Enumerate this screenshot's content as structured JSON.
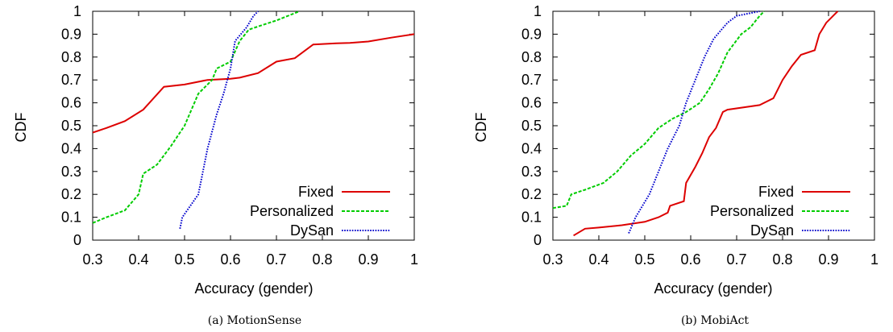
{
  "chart_data": [
    {
      "type": "line",
      "caption": "(a) MotionSense",
      "xlabel": "Accuracy (gender)",
      "ylabel": "CDF",
      "xlim": [
        0.3,
        1
      ],
      "ylim": [
        0,
        1
      ],
      "xticks": [
        "0.3",
        "0.4",
        "0.5",
        "0.6",
        "0.7",
        "0.8",
        "0.9",
        "1"
      ],
      "yticks": [
        "0",
        "0.1",
        "0.2",
        "0.3",
        "0.4",
        "0.5",
        "0.6",
        "0.7",
        "0.8",
        "0.9",
        "1"
      ],
      "legend_position": "bottom-right",
      "series": [
        {
          "name": "Fixed",
          "color": "#dd0000",
          "dash": "solid",
          "points": [
            [
              0.3,
              0.47
            ],
            [
              0.33,
              0.49
            ],
            [
              0.37,
              0.52
            ],
            [
              0.41,
              0.57
            ],
            [
              0.455,
              0.67
            ],
            [
              0.5,
              0.68
            ],
            [
              0.55,
              0.7
            ],
            [
              0.6,
              0.705
            ],
            [
              0.62,
              0.71
            ],
            [
              0.66,
              0.73
            ],
            [
              0.7,
              0.78
            ],
            [
              0.74,
              0.795
            ],
            [
              0.78,
              0.855
            ],
            [
              0.83,
              0.86
            ],
            [
              0.86,
              0.862
            ],
            [
              0.9,
              0.868
            ],
            [
              0.95,
              0.885
            ],
            [
              1.0,
              0.9
            ]
          ]
        },
        {
          "name": "Personalized",
          "color": "#00cc00",
          "dash": "dashed",
          "points": [
            [
              0.3,
              0.075
            ],
            [
              0.33,
              0.1
            ],
            [
              0.37,
              0.13
            ],
            [
              0.4,
              0.2
            ],
            [
              0.41,
              0.29
            ],
            [
              0.44,
              0.33
            ],
            [
              0.47,
              0.41
            ],
            [
              0.5,
              0.5
            ],
            [
              0.53,
              0.64
            ],
            [
              0.56,
              0.7
            ],
            [
              0.57,
              0.75
            ],
            [
              0.6,
              0.78
            ],
            [
              0.62,
              0.87
            ],
            [
              0.64,
              0.92
            ],
            [
              0.67,
              0.94
            ],
            [
              0.7,
              0.96
            ],
            [
              0.75,
              1.0
            ]
          ]
        },
        {
          "name": "DySan",
          "color": "#0000cc",
          "dash": "dotted",
          "points": [
            [
              0.49,
              0.05
            ],
            [
              0.495,
              0.1
            ],
            [
              0.53,
              0.2
            ],
            [
              0.55,
              0.4
            ],
            [
              0.57,
              0.55
            ],
            [
              0.585,
              0.64
            ],
            [
              0.6,
              0.75
            ],
            [
              0.61,
              0.87
            ],
            [
              0.635,
              0.93
            ],
            [
              0.65,
              0.98
            ],
            [
              0.66,
              1.0
            ]
          ]
        }
      ]
    },
    {
      "type": "line",
      "caption": "(b) MobiAct",
      "xlabel": "Accuracy (gender)",
      "ylabel": "CDF",
      "xlim": [
        0.3,
        1
      ],
      "ylim": [
        0,
        1
      ],
      "xticks": [
        "0.3",
        "0.4",
        "0.5",
        "0.6",
        "0.7",
        "0.8",
        "0.9",
        "1"
      ],
      "yticks": [
        "0",
        "0.1",
        "0.2",
        "0.3",
        "0.4",
        "0.5",
        "0.6",
        "0.7",
        "0.8",
        "0.9",
        "1"
      ],
      "legend_position": "bottom-right",
      "series": [
        {
          "name": "Fixed",
          "color": "#dd0000",
          "dash": "solid",
          "points": [
            [
              0.345,
              0.02
            ],
            [
              0.37,
              0.05
            ],
            [
              0.4,
              0.055
            ],
            [
              0.45,
              0.065
            ],
            [
              0.5,
              0.08
            ],
            [
              0.53,
              0.1
            ],
            [
              0.55,
              0.12
            ],
            [
              0.555,
              0.15
            ],
            [
              0.585,
              0.17
            ],
            [
              0.59,
              0.25
            ],
            [
              0.61,
              0.32
            ],
            [
              0.625,
              0.38
            ],
            [
              0.64,
              0.45
            ],
            [
              0.655,
              0.49
            ],
            [
              0.67,
              0.56
            ],
            [
              0.68,
              0.57
            ],
            [
              0.75,
              0.59
            ],
            [
              0.78,
              0.62
            ],
            [
              0.8,
              0.7
            ],
            [
              0.82,
              0.76
            ],
            [
              0.84,
              0.81
            ],
            [
              0.87,
              0.83
            ],
            [
              0.88,
              0.9
            ],
            [
              0.895,
              0.95
            ],
            [
              0.91,
              0.98
            ],
            [
              0.92,
              1.0
            ]
          ]
        },
        {
          "name": "Personalized",
          "color": "#00cc00",
          "dash": "dashed",
          "points": [
            [
              0.3,
              0.14
            ],
            [
              0.33,
              0.15
            ],
            [
              0.34,
              0.2
            ],
            [
              0.37,
              0.22
            ],
            [
              0.41,
              0.25
            ],
            [
              0.44,
              0.3
            ],
            [
              0.47,
              0.37
            ],
            [
              0.5,
              0.42
            ],
            [
              0.53,
              0.49
            ],
            [
              0.56,
              0.53
            ],
            [
              0.59,
              0.56
            ],
            [
              0.62,
              0.6
            ],
            [
              0.64,
              0.66
            ],
            [
              0.66,
              0.73
            ],
            [
              0.68,
              0.82
            ],
            [
              0.71,
              0.9
            ],
            [
              0.73,
              0.93
            ],
            [
              0.75,
              0.98
            ],
            [
              0.76,
              1.0
            ]
          ]
        },
        {
          "name": "DySan",
          "color": "#0000cc",
          "dash": "dotted",
          "points": [
            [
              0.465,
              0.03
            ],
            [
              0.48,
              0.1
            ],
            [
              0.51,
              0.2
            ],
            [
              0.53,
              0.3
            ],
            [
              0.55,
              0.4
            ],
            [
              0.575,
              0.5
            ],
            [
              0.59,
              0.6
            ],
            [
              0.61,
              0.7
            ],
            [
              0.63,
              0.8
            ],
            [
              0.65,
              0.88
            ],
            [
              0.68,
              0.95
            ],
            [
              0.7,
              0.98
            ],
            [
              0.75,
              1.0
            ]
          ]
        }
      ]
    }
  ]
}
